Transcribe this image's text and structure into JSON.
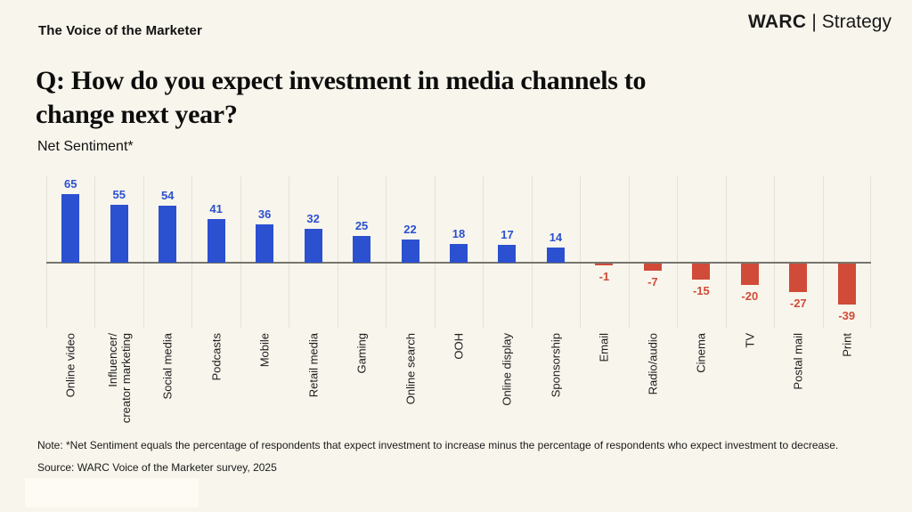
{
  "page": {
    "background": "#f8f5ec"
  },
  "header": {
    "kicker": "The Voice of the Marketer",
    "logo": {
      "brand": "WARC",
      "separator": "|",
      "suffix": "Strategy"
    }
  },
  "title": "Q: How do you expect investment in media channels to\nchange next year?",
  "subtitle": "Net Sentiment*",
  "chart_data": {
    "type": "bar",
    "title": "Net Sentiment*",
    "categories": [
      "Online video",
      "Influencer/\ncreator marketing",
      "Social media",
      "Podcasts",
      "Mobile",
      "Retail media",
      "Gaming",
      "Online search",
      "OOH",
      "Online display",
      "Sponsorship",
      "Email",
      "Radio/audio",
      "Cinema",
      "TV",
      "Postal mail",
      "Print"
    ],
    "values": [
      65,
      55,
      54,
      41,
      36,
      32,
      25,
      22,
      18,
      17,
      14,
      -1,
      -7,
      -15,
      -20,
      -27,
      -39
    ],
    "xlabel": "",
    "ylabel": "Net Sentiment*",
    "ylim": [
      -45,
      80
    ],
    "grid": "vertical category separators only",
    "legend": "none",
    "value_labels": true,
    "positive_color": "#2b50d0",
    "negative_color": "#d04b38",
    "gridline_color": "#e5e2d8",
    "axis_line_color": "#76756e"
  },
  "footer": {
    "note": "Note: *Net Sentiment equals the percentage of respondents that expect investment to increase minus the percentage of respondents who expect investment to decrease.",
    "source": "Source: WARC Voice of the Marketer survey, 2025"
  }
}
